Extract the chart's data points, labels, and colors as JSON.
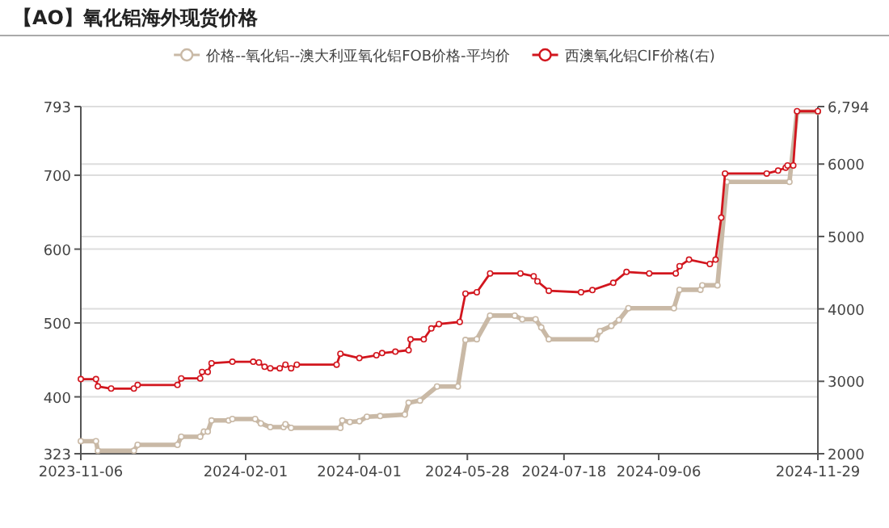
{
  "chart_data": {
    "type": "line",
    "title": "【AO】氧化铝海外现货价格",
    "xlim": [
      "2023-11-06",
      "2024-11-29"
    ],
    "xticks": [
      "2023-11-06",
      "2024-02-01",
      "2024-04-01",
      "2024-05-28",
      "2024-07-18",
      "2024-09-06",
      "2024-11-29"
    ],
    "ylim": [
      323,
      793
    ],
    "yticks": [
      323,
      400,
      500,
      600,
      700,
      793
    ],
    "y2lim": [
      2000,
      6794
    ],
    "y2ticks": [
      2000,
      3000,
      4000,
      5000,
      6000,
      {
        "value": 6794,
        "label": "6,794"
      }
    ],
    "grid": "y",
    "legend": "top",
    "marker": "circle",
    "line_style": "solid",
    "series": [
      {
        "name": "价格--氧化铝--澳大利亚氧化铝FOB价格-平均价",
        "color": "#c9b9a6",
        "x": [
          "2023-11-06",
          "2023-11-14",
          "2023-11-15",
          "2023-12-04",
          "2023-12-06",
          "2023-12-27",
          "2023-12-29",
          "2024-01-08",
          "2024-01-10",
          "2024-01-12",
          "2024-01-14",
          "2024-01-23",
          "2024-01-25",
          "2024-02-06",
          "2024-02-09",
          "2024-02-14",
          "2024-02-21",
          "2024-02-22",
          "2024-02-25",
          "2024-03-22",
          "2024-03-23",
          "2024-03-27",
          "2024-04-01",
          "2024-04-05",
          "2024-04-12",
          "2024-04-25",
          "2024-04-27",
          "2024-05-03",
          "2024-05-12",
          "2024-05-23",
          "2024-05-27",
          "2024-06-02",
          "2024-06-09",
          "2024-06-22",
          "2024-06-26",
          "2024-07-03",
          "2024-07-06",
          "2024-07-10",
          "2024-08-04",
          "2024-08-06",
          "2024-08-12",
          "2024-08-16",
          "2024-08-21",
          "2024-09-14",
          "2024-09-17",
          "2024-09-28",
          "2024-09-29",
          "2024-10-07",
          "2024-10-12",
          "2024-11-14",
          "2024-11-18",
          "2024-11-29"
        ],
        "values": [
          340,
          340,
          327,
          327,
          335,
          335,
          346,
          346,
          353,
          353,
          368,
          368,
          370,
          370,
          364,
          359,
          359,
          363,
          358,
          358,
          368,
          366,
          367,
          373,
          374,
          376,
          392,
          395,
          414,
          414,
          477,
          478,
          510,
          510,
          505,
          505,
          494,
          478,
          478,
          489,
          496,
          504,
          520,
          520,
          545,
          545,
          551,
          551,
          691,
          691,
          786,
          786
        ]
      },
      {
        "name": "西澳氧化铝CIF价格(右)",
        "color": "#d2161e",
        "axis": "y2",
        "x": [
          "2023-11-06",
          "2023-11-14",
          "2023-11-15",
          "2023-11-22",
          "2023-12-04",
          "2023-12-06",
          "2023-12-27",
          "2023-12-29",
          "2024-01-08",
          "2024-01-09",
          "2024-01-12",
          "2024-01-14",
          "2024-01-25",
          "2024-02-05",
          "2024-02-08",
          "2024-02-11",
          "2024-02-14",
          "2024-02-19",
          "2024-02-22",
          "2024-02-25",
          "2024-02-28",
          "2024-03-20",
          "2024-03-22",
          "2024-04-01",
          "2024-04-10",
          "2024-04-13",
          "2024-04-20",
          "2024-04-27",
          "2024-04-28",
          "2024-05-05",
          "2024-05-09",
          "2024-05-13",
          "2024-05-24",
          "2024-05-27",
          "2024-06-02",
          "2024-06-09",
          "2024-06-25",
          "2024-07-02",
          "2024-07-04",
          "2024-07-10",
          "2024-07-27",
          "2024-08-02",
          "2024-08-13",
          "2024-08-20",
          "2024-09-01",
          "2024-09-15",
          "2024-09-17",
          "2024-09-22",
          "2024-10-03",
          "2024-10-06",
          "2024-10-09",
          "2024-10-11",
          "2024-11-02",
          "2024-11-08",
          "2024-11-12",
          "2024-11-13",
          "2024-11-16",
          "2024-11-18",
          "2024-11-29"
        ],
        "values": [
          3030,
          3030,
          2930,
          2900,
          2900,
          2950,
          2950,
          3040,
          3040,
          3130,
          3130,
          3250,
          3270,
          3270,
          3260,
          3200,
          3180,
          3180,
          3230,
          3180,
          3230,
          3230,
          3380,
          3320,
          3360,
          3390,
          3410,
          3430,
          3580,
          3580,
          3730,
          3790,
          3820,
          4210,
          4230,
          4490,
          4490,
          4450,
          4380,
          4250,
          4230,
          4260,
          4360,
          4510,
          4490,
          4490,
          4590,
          4680,
          4620,
          4680,
          5260,
          5870,
          5870,
          5910,
          5950,
          5980,
          5980,
          6730,
          6730
        ]
      }
    ]
  }
}
